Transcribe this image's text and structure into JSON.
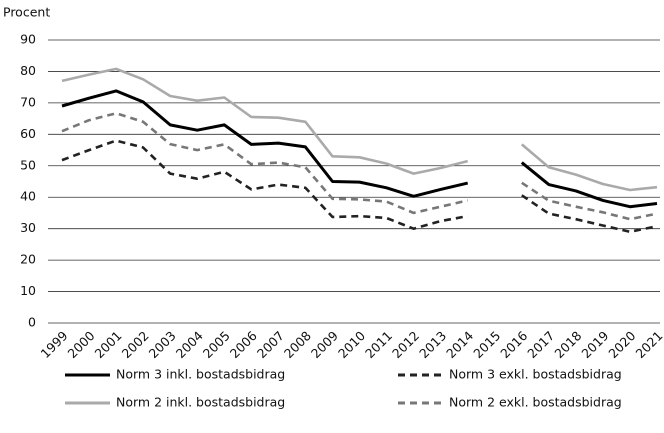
{
  "chart_data": {
    "type": "line",
    "y_label": "Procent",
    "categories": [
      "1999",
      "2000",
      "2001",
      "2002",
      "2003",
      "2004",
      "2005",
      "2006",
      "2007",
      "2008",
      "2009",
      "2010",
      "2011",
      "2012",
      "2013",
      "2014",
      "2015",
      "2016",
      "2017",
      "2018",
      "2019",
      "2020",
      "2021"
    ],
    "series": [
      {
        "name": "Norm 3 inkl. bostadsbidrag",
        "color": "#000000",
        "dashed": false,
        "values": [
          69,
          71.5,
          73.8,
          70.3,
          63,
          61.3,
          63,
          56.8,
          57.2,
          56,
          45,
          44.8,
          43,
          40.3,
          42.5,
          44.5,
          null,
          51,
          44,
          42,
          39,
          37,
          38
        ]
      },
      {
        "name": "Norm 3 exkl. bostadsbidrag",
        "color": "#222222",
        "dashed": true,
        "values": [
          51.8,
          55,
          58,
          55.8,
          47.5,
          45.9,
          48.1,
          42.5,
          44,
          43,
          33.7,
          34,
          33.4,
          30,
          32.4,
          34,
          null,
          40.6,
          34.8,
          33,
          31,
          29,
          30.8
        ]
      },
      {
        "name": "Norm 2 inkl. bostadsbidrag",
        "color": "#aaaaaa",
        "dashed": false,
        "values": [
          77,
          79,
          80.8,
          77.5,
          72.2,
          70.7,
          71.7,
          65.5,
          65.3,
          64,
          53,
          52.7,
          50.7,
          47.5,
          49.3,
          51.5,
          null,
          56.8,
          49.5,
          47.2,
          44.2,
          42.3,
          43.2
        ]
      },
      {
        "name": "Norm 2 exkl. bostadsbidrag",
        "color": "#777777",
        "dashed": true,
        "values": [
          61,
          64.5,
          66.7,
          64,
          56.9,
          55,
          56.8,
          50.5,
          51,
          49.5,
          39.5,
          39.3,
          38.6,
          35,
          37,
          39,
          null,
          44.6,
          38.9,
          37,
          35.2,
          33,
          34.8
        ]
      }
    ],
    "ylim": [
      0,
      90
    ],
    "yticks": [
      0,
      10,
      20,
      30,
      40,
      50,
      60,
      70,
      80,
      90
    ],
    "grid": true,
    "legend": "bottom"
  }
}
